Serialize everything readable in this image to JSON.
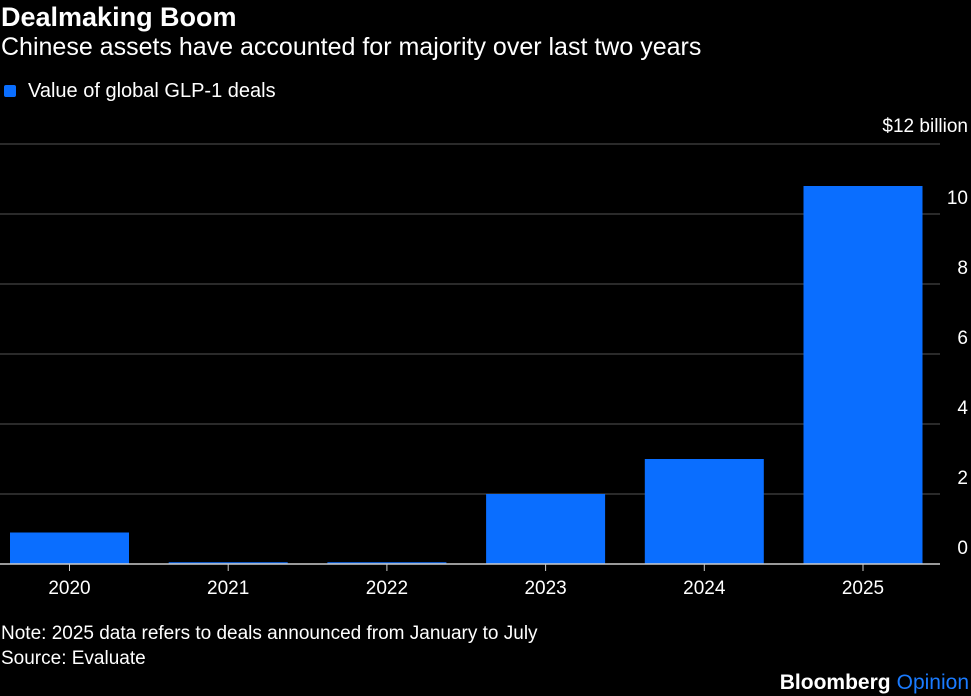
{
  "title": "Dealmaking Boom",
  "subtitle": "Chinese assets have accounted for majority over last two years",
  "legend": {
    "label": "Value of global GLP-1 deals",
    "color": "#0a6eff"
  },
  "unit_label": "$12 billion",
  "footnote": "Note: 2025 data refers to deals announced from January to July",
  "source": "Source: Evaluate",
  "brand": {
    "main": "Bloomberg",
    "sub": "Opinion"
  },
  "colors": {
    "background": "#000000",
    "bar": "#0a6eff",
    "gridline": "#555555",
    "axis": "#cccccc",
    "text": "#ffffff",
    "brand_accent": "#1a7bff"
  },
  "chart_data": {
    "type": "bar",
    "categories": [
      "2020",
      "2021",
      "2022",
      "2023",
      "2024",
      "2025"
    ],
    "series": [
      {
        "name": "Value of global GLP-1 deals",
        "values": [
          0.9,
          0.05,
          0.05,
          2.0,
          3.0,
          10.8
        ]
      }
    ],
    "ylim": [
      0,
      12
    ],
    "yticks": [
      0,
      2,
      4,
      6,
      8,
      10,
      12
    ],
    "ytick_labels": [
      "0",
      "2",
      "4",
      "6",
      "8",
      "10",
      "$12 billion"
    ],
    "grid": true,
    "y_axis_position": "right",
    "legend_position": "top-left"
  }
}
